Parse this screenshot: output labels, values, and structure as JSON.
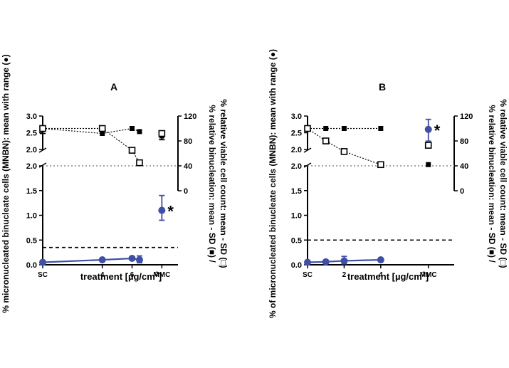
{
  "chart_data": [
    {
      "type": "scatter",
      "panel_label": "A",
      "xlabel_text": "treatment [µg/cm",
      "xlabel_sup": "2",
      "xlabel_close": "]",
      "ylabel_left": "% micronucleated binucleate cells (MNBN): mean with range (●)",
      "ylabel_right_1": "% relative binucleation: mean - SD (■) /",
      "ylabel_right_2": "% relative viable cell count: mean - SD (□)",
      "x_ticks": [
        {
          "x": 0,
          "label": "SC"
        },
        {
          "x": 4,
          "label": "4"
        },
        {
          "x": 6,
          "label": "6"
        },
        {
          "x": 8,
          "label": "MMC"
        }
      ],
      "xlim": [
        0,
        8.7
      ],
      "left_ticks_lower": [
        "0.0",
        "0.5",
        "1.0",
        "1.5",
        "2.0"
      ],
      "left_ticks_upper": [
        "2.0",
        "2.5",
        "3.0"
      ],
      "right_ticks": [
        "0",
        "40",
        "80",
        "120"
      ],
      "ylim_left_lower": [
        0,
        2
      ],
      "ylim_left_upper": [
        2,
        3
      ],
      "ylim_right": [
        0,
        120
      ],
      "dashed_threshold": 0.35,
      "dotted_level": 40,
      "series": [
        {
          "name": "MNBN",
          "marker": "filled-circle",
          "color": "#3F4FA5",
          "connected": true,
          "points": [
            {
              "x": 0,
              "y": 0.05,
              "lo": 0.05,
              "hi": 0.05
            },
            {
              "x": 4,
              "y": 0.1,
              "lo": 0.1,
              "hi": 0.1
            },
            {
              "x": 6,
              "y": 0.13,
              "lo": 0.13,
              "hi": 0.13
            },
            {
              "x": 6.5,
              "y": 0.1,
              "lo": 0.04,
              "hi": 0.18
            }
          ]
        },
        {
          "name": "MNBN MMC",
          "marker": "filled-circle",
          "color": "#3F4FA5",
          "connected": false,
          "points": [
            {
              "x": 8,
              "y": 1.1,
              "lo": 0.9,
              "hi": 1.4
            }
          ]
        },
        {
          "name": "relative binucleation",
          "marker": "filled-square",
          "color": "#000000",
          "connected": true,
          "points": [
            {
              "x": 0,
              "y": 100,
              "lo": 92,
              "hi": 100
            },
            {
              "x": 4,
              "y": 92
            },
            {
              "x": 6,
              "y": 100
            },
            {
              "x": 6.5,
              "y": 95
            }
          ]
        },
        {
          "name": "relative binucleation MMC",
          "marker": "filled-square",
          "color": "#000000",
          "connected": false,
          "points": [
            {
              "x": 8,
              "y": 88,
              "lo": 82,
              "hi": 88
            }
          ]
        },
        {
          "name": "relative viable cell count",
          "marker": "open-square",
          "color": "#000000",
          "connected": true,
          "points": [
            {
              "x": 0,
              "y": 100
            },
            {
              "x": 4,
              "y": 100
            },
            {
              "x": 6,
              "y": 65
            },
            {
              "x": 6.5,
              "y": 45
            }
          ]
        },
        {
          "name": "relative viable cell count MMC",
          "marker": "open-square",
          "color": "#000000",
          "connected": false,
          "points": [
            {
              "x": 8,
              "y": 92
            }
          ]
        }
      ],
      "significance": [
        {
          "x": 8,
          "y": 1.1,
          "label": "*"
        }
      ]
    },
    {
      "type": "scatter",
      "panel_label": "B",
      "xlabel_text": "treatment [µg/cm",
      "xlabel_sup": "2",
      "xlabel_close": "]",
      "ylabel_left": "% of micronucleated binucleate cells (MNBN): mean with range (●)",
      "ylabel_right_1": "% relative binucleation: mean - SD (■) /",
      "ylabel_right_2": "% relative viable cell count: mean - SD (□)",
      "x_ticks": [
        {
          "x": 0,
          "label": "SC"
        },
        {
          "x": 2,
          "label": "2"
        },
        {
          "x": 4,
          "label": "4"
        },
        {
          "x": 6.6,
          "label": "MMC"
        }
      ],
      "xlim": [
        0,
        7.7
      ],
      "left_ticks_lower": [
        "0.0",
        "0.5",
        "1.0",
        "1.5",
        "2.0"
      ],
      "left_ticks_upper": [
        "2.0",
        "2.5",
        "3.0"
      ],
      "right_ticks": [
        "0",
        "40",
        "80",
        "120"
      ],
      "ylim_left_lower": [
        0,
        2
      ],
      "ylim_left_upper": [
        2,
        3
      ],
      "ylim_right": [
        0,
        120
      ],
      "dashed_threshold": 0.5,
      "dotted_level": 40,
      "series": [
        {
          "name": "MNBN",
          "marker": "filled-circle",
          "color": "#3F4FA5",
          "connected": true,
          "points": [
            {
              "x": 0,
              "y": 0.05,
              "lo": 0.05,
              "hi": 0.05
            },
            {
              "x": 1,
              "y": 0.06,
              "lo": 0.06,
              "hi": 0.06
            },
            {
              "x": 2,
              "y": 0.08,
              "lo": 0.02,
              "hi": 0.17
            },
            {
              "x": 4,
              "y": 0.1,
              "lo": 0.1,
              "hi": 0.1
            }
          ]
        },
        {
          "name": "MNBN MMC",
          "marker": "filled-circle",
          "color": "#3F4FA5",
          "connected": false,
          "points": [
            {
              "x": 6.6,
              "y": 2.6,
              "lo": 2.25,
              "hi": 2.9
            }
          ]
        },
        {
          "name": "relative binucleation",
          "marker": "filled-square",
          "color": "#000000",
          "connected": true,
          "points": [
            {
              "x": 0,
              "y": 100
            },
            {
              "x": 1,
              "y": 100
            },
            {
              "x": 2,
              "y": 100
            },
            {
              "x": 4,
              "y": 100
            }
          ]
        },
        {
          "name": "relative binucleation MMC",
          "marker": "filled-square",
          "color": "#000000",
          "connected": false,
          "points": [
            {
              "x": 6.6,
              "y": 42
            }
          ]
        },
        {
          "name": "relative viable cell count",
          "marker": "open-square",
          "color": "#000000",
          "connected": true,
          "points": [
            {
              "x": 0,
              "y": 100
            },
            {
              "x": 1,
              "y": 80
            },
            {
              "x": 2,
              "y": 63
            },
            {
              "x": 4,
              "y": 42
            }
          ]
        },
        {
          "name": "relative viable cell count MMC",
          "marker": "open-square",
          "color": "#000000",
          "connected": false,
          "points": [
            {
              "x": 6.6,
              "y": 73
            }
          ]
        }
      ],
      "significance": [
        {
          "x": 6.6,
          "y": 2.6,
          "label": "*"
        }
      ]
    }
  ]
}
